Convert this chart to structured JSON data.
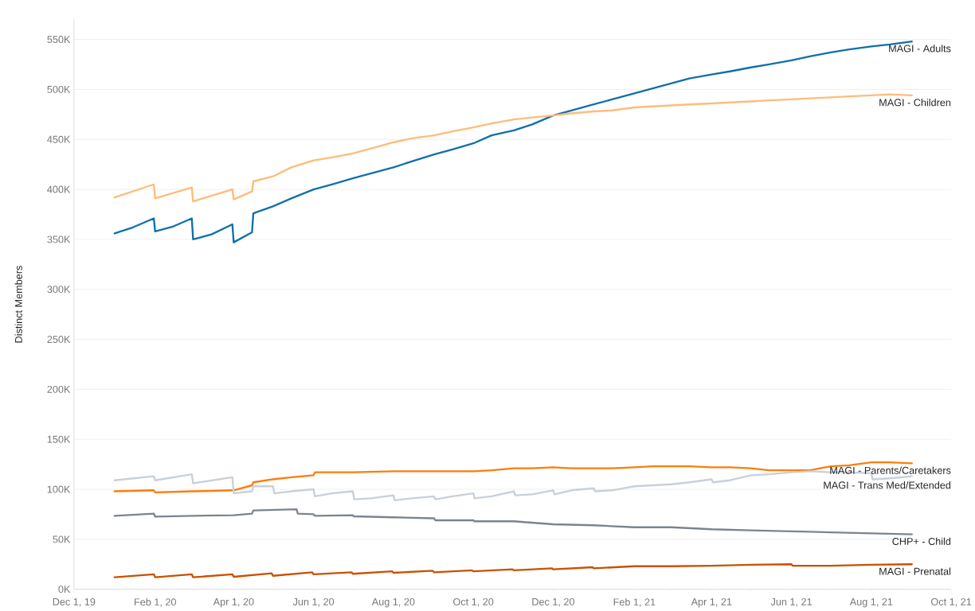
{
  "chart_data": {
    "type": "line",
    "ylabel": "Distinct Members",
    "grid": "y",
    "legend": false,
    "marker": "none",
    "line_style": "solid",
    "xlim": [
      "2019-12-01",
      "2021-10-01"
    ],
    "xticks": [
      {
        "value": "2019-12-01",
        "label": "Dec 1, 19"
      },
      {
        "value": "2020-01-01",
        "label": null
      },
      {
        "value": "2020-02-01",
        "label": "Feb 1, 20"
      },
      {
        "value": "2020-03-01",
        "label": null
      },
      {
        "value": "2020-04-01",
        "label": "Apr 1, 20"
      },
      {
        "value": "2020-05-01",
        "label": null
      },
      {
        "value": "2020-06-01",
        "label": "Jun 1, 20"
      },
      {
        "value": "2020-07-01",
        "label": null
      },
      {
        "value": "2020-08-01",
        "label": "Aug 1, 20"
      },
      {
        "value": "2020-09-01",
        "label": null
      },
      {
        "value": "2020-10-01",
        "label": "Oct 1, 20"
      },
      {
        "value": "2020-11-01",
        "label": null
      },
      {
        "value": "2020-12-01",
        "label": "Dec 1, 20"
      },
      {
        "value": "2021-01-01",
        "label": null
      },
      {
        "value": "2021-02-01",
        "label": "Feb 1, 21"
      },
      {
        "value": "2021-03-01",
        "label": null
      },
      {
        "value": "2021-04-01",
        "label": "Apr 1, 21"
      },
      {
        "value": "2021-05-01",
        "label": null
      },
      {
        "value": "2021-06-01",
        "label": "Jun 1, 21"
      },
      {
        "value": "2021-07-01",
        "label": null
      },
      {
        "value": "2021-08-01",
        "label": "Aug 1, 21"
      },
      {
        "value": "2021-09-01",
        "label": null
      },
      {
        "value": "2021-10-01",
        "label": "Oct 1, 21"
      }
    ],
    "ylim": [
      0,
      570
    ],
    "yticks": [
      {
        "value": 0,
        "label": "0K"
      },
      {
        "value": 50,
        "label": "50K"
      },
      {
        "value": 100,
        "label": "100K"
      },
      {
        "value": 150,
        "label": "150K"
      },
      {
        "value": 200,
        "label": "200K"
      },
      {
        "value": 250,
        "label": "250K"
      },
      {
        "value": 300,
        "label": "300K"
      },
      {
        "value": 350,
        "label": "350K"
      },
      {
        "value": 400,
        "label": "400K"
      },
      {
        "value": 450,
        "label": "450K"
      },
      {
        "value": 500,
        "label": "500K"
      },
      {
        "value": 550,
        "label": "550K"
      }
    ],
    "series": [
      {
        "name": "MAGI - Adults",
        "color": "#1170aa",
        "x": [
          "2020-01-01",
          "2020-01-15",
          "2020-01-31",
          "2020-02-01",
          "2020-02-15",
          "2020-02-29",
          "2020-03-01",
          "2020-03-15",
          "2020-03-31",
          "2020-04-01",
          "2020-04-15",
          "2020-04-16",
          "2020-05-01",
          "2020-05-15",
          "2020-06-01",
          "2020-06-15",
          "2020-07-01",
          "2020-07-15",
          "2020-08-01",
          "2020-08-15",
          "2020-09-01",
          "2020-09-15",
          "2020-10-01",
          "2020-10-15",
          "2020-11-01",
          "2020-11-15",
          "2020-12-01",
          "2020-12-15",
          "2021-01-01",
          "2021-01-15",
          "2021-02-01",
          "2021-02-15",
          "2021-03-01",
          "2021-03-15",
          "2021-04-01",
          "2021-04-15",
          "2021-05-01",
          "2021-05-15",
          "2021-06-01",
          "2021-06-15",
          "2021-07-01",
          "2021-07-15",
          "2021-08-01",
          "2021-08-15",
          "2021-09-01"
        ],
        "values": [
          356,
          362,
          371,
          358,
          363,
          371,
          350,
          355,
          365,
          347,
          357,
          376,
          383,
          391,
          400,
          405,
          411,
          416,
          422,
          428,
          435,
          440,
          446,
          454,
          459,
          465,
          474,
          479,
          485,
          490,
          496,
          501,
          506,
          511,
          515,
          518,
          522,
          525,
          529,
          533,
          537,
          540,
          543,
          545,
          548
        ]
      },
      {
        "name": "MAGI - Children",
        "color": "#ffbc79",
        "x": [
          "2020-01-01",
          "2020-01-31",
          "2020-02-01",
          "2020-02-29",
          "2020-03-01",
          "2020-03-31",
          "2020-04-01",
          "2020-04-15",
          "2020-04-16",
          "2020-05-01",
          "2020-05-15",
          "2020-06-01",
          "2020-06-15",
          "2020-07-01",
          "2020-07-15",
          "2020-08-01",
          "2020-08-15",
          "2020-09-01",
          "2020-09-15",
          "2020-10-01",
          "2020-10-15",
          "2020-11-01",
          "2020-11-15",
          "2020-12-01",
          "2020-12-15",
          "2021-01-01",
          "2021-01-15",
          "2021-02-01",
          "2021-02-15",
          "2021-03-01",
          "2021-03-15",
          "2021-04-01",
          "2021-04-15",
          "2021-05-01",
          "2021-05-15",
          "2021-06-01",
          "2021-06-15",
          "2021-07-01",
          "2021-07-15",
          "2021-08-01",
          "2021-08-15",
          "2021-09-01"
        ],
        "values": [
          392,
          405,
          391,
          402,
          388,
          400,
          390,
          398,
          408,
          413,
          422,
          429,
          432,
          436,
          441,
          447,
          451,
          454,
          458,
          462,
          466,
          470,
          472,
          474,
          476,
          478,
          479,
          482,
          483,
          484,
          485,
          486,
          487,
          488,
          489,
          490,
          491,
          492,
          493,
          494,
          495,
          494
        ]
      },
      {
        "name": "MAGI - Parents/Caretakers",
        "color": "#fc7d0b",
        "x": [
          "2020-01-01",
          "2020-01-31",
          "2020-02-01",
          "2020-03-01",
          "2020-04-01",
          "2020-04-15",
          "2020-04-16",
          "2020-05-01",
          "2020-05-15",
          "2020-06-01",
          "2020-06-02",
          "2020-06-15",
          "2020-07-01",
          "2020-08-01",
          "2020-09-01",
          "2020-10-01",
          "2020-10-15",
          "2020-11-01",
          "2020-11-15",
          "2020-12-01",
          "2020-12-15",
          "2021-01-01",
          "2021-01-15",
          "2021-02-01",
          "2021-02-15",
          "2021-03-01",
          "2021-03-15",
          "2021-04-01",
          "2021-04-15",
          "2021-05-01",
          "2021-05-15",
          "2021-06-01",
          "2021-06-15",
          "2021-07-01",
          "2021-07-15",
          "2021-08-01",
          "2021-08-15",
          "2021-09-01"
        ],
        "values": [
          98,
          99,
          97,
          98,
          99,
          104,
          107,
          110,
          112,
          114,
          117,
          117,
          117,
          118,
          118,
          118,
          119,
          121,
          121,
          122,
          121,
          121,
          121,
          122,
          123,
          123,
          123,
          122,
          122,
          121,
          119,
          119,
          119,
          123,
          124,
          127,
          127,
          126
        ]
      },
      {
        "name": "MAGI - Trans Med/Extended",
        "color": "#c8d0d9",
        "x": [
          "2020-01-01",
          "2020-01-31",
          "2020-02-01",
          "2020-02-29",
          "2020-03-01",
          "2020-03-31",
          "2020-04-01",
          "2020-04-15",
          "2020-04-16",
          "2020-05-01",
          "2020-05-02",
          "2020-05-15",
          "2020-06-01",
          "2020-06-02",
          "2020-06-15",
          "2020-07-01",
          "2020-07-02",
          "2020-07-15",
          "2020-08-01",
          "2020-08-02",
          "2020-08-15",
          "2020-09-01",
          "2020-09-02",
          "2020-09-15",
          "2020-10-01",
          "2020-10-02",
          "2020-10-15",
          "2020-11-01",
          "2020-11-02",
          "2020-11-15",
          "2020-12-01",
          "2020-12-02",
          "2020-12-15",
          "2021-01-01",
          "2021-01-02",
          "2021-01-15",
          "2021-02-01",
          "2021-02-15",
          "2021-03-01",
          "2021-03-15",
          "2021-04-01",
          "2021-04-02",
          "2021-04-15",
          "2021-05-01",
          "2021-05-15",
          "2021-06-01",
          "2021-06-15",
          "2021-07-01",
          "2021-07-15",
          "2021-08-01",
          "2021-08-02",
          "2021-08-15",
          "2021-09-01"
        ],
        "values": [
          109,
          113,
          109,
          115,
          106,
          112,
          96,
          98,
          103,
          103,
          96,
          98,
          100,
          93,
          96,
          98,
          90,
          91,
          94,
          89,
          91,
          93,
          90,
          93,
          96,
          91,
          93,
          98,
          94,
          95,
          99,
          95,
          99,
          101,
          98,
          99,
          103,
          104,
          105,
          107,
          110,
          107,
          109,
          114,
          115,
          117,
          118,
          117,
          117,
          116,
          110,
          111,
          113
        ]
      },
      {
        "name": "CHP+ - Child",
        "color": "#7b848f",
        "x": [
          "2020-01-01",
          "2020-01-31",
          "2020-02-01",
          "2020-03-01",
          "2020-04-01",
          "2020-04-15",
          "2020-04-16",
          "2020-05-19",
          "2020-05-20",
          "2020-06-01",
          "2020-06-02",
          "2020-07-01",
          "2020-07-02",
          "2020-08-01",
          "2020-09-01",
          "2020-09-02",
          "2020-10-01",
          "2020-10-02",
          "2020-11-01",
          "2020-12-01",
          "2021-01-01",
          "2021-02-01",
          "2021-03-01",
          "2021-04-01",
          "2021-05-01",
          "2021-06-01",
          "2021-07-01",
          "2021-08-01",
          "2021-09-01"
        ],
        "values": [
          73.5,
          75.7,
          72.7,
          73.5,
          74,
          75.7,
          78.8,
          80,
          75.7,
          75,
          73.5,
          74,
          73,
          72,
          71,
          69,
          69,
          68,
          68,
          65,
          64,
          62,
          62,
          60,
          59,
          58,
          57,
          56,
          55
        ]
      },
      {
        "name": "MAGI - Prenatal",
        "color": "#c85200",
        "x": [
          "2020-01-01",
          "2020-01-31",
          "2020-02-01",
          "2020-02-29",
          "2020-03-01",
          "2020-03-31",
          "2020-04-01",
          "2020-04-30",
          "2020-05-01",
          "2020-05-31",
          "2020-06-01",
          "2020-06-30",
          "2020-07-01",
          "2020-07-31",
          "2020-08-01",
          "2020-08-31",
          "2020-09-01",
          "2020-09-30",
          "2020-10-01",
          "2020-10-31",
          "2020-11-01",
          "2020-11-30",
          "2020-12-01",
          "2020-12-31",
          "2021-01-01",
          "2021-02-01",
          "2021-03-01",
          "2021-04-01",
          "2021-05-01",
          "2021-06-01",
          "2021-06-02",
          "2021-07-01",
          "2021-08-01",
          "2021-09-01"
        ],
        "values": [
          12,
          15,
          12,
          15,
          12,
          15,
          12.5,
          16,
          13.5,
          17,
          15,
          17,
          15.5,
          18,
          16.5,
          18.5,
          17,
          19,
          18,
          20,
          19,
          21,
          20,
          22,
          21,
          23,
          23,
          23.5,
          24.5,
          25,
          23.5,
          23.5,
          24.5,
          25
        ]
      }
    ]
  }
}
